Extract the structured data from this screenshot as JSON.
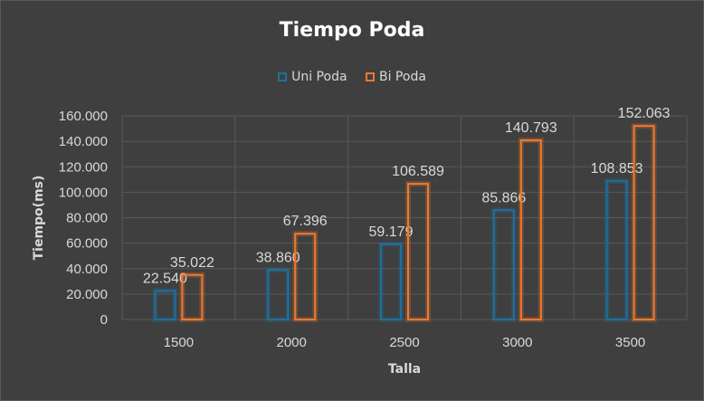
{
  "chart_data": {
    "type": "bar",
    "title": "Tiempo Poda",
    "xlabel": "Talla",
    "ylabel": "Tiempo(ms)",
    "categories": [
      "1500",
      "2000",
      "2500",
      "3000",
      "3500"
    ],
    "series": [
      {
        "name": "Uni Poda",
        "values": [
          22540,
          38860,
          59179,
          85866,
          108853
        ],
        "labels": [
          "22.540",
          "38.860",
          "59.179",
          "85.866",
          "108.853"
        ],
        "color": "#1f6f9e"
      },
      {
        "name": "Bi Poda",
        "values": [
          35022,
          67396,
          106589,
          140793,
          152063
        ],
        "labels": [
          "35.022",
          "67.396",
          "106.589",
          "140.793",
          "152.063"
        ],
        "color": "#f0782d"
      }
    ],
    "ylim": [
      0,
      160000
    ],
    "yticks": [
      0,
      20000,
      40000,
      60000,
      80000,
      100000,
      120000,
      140000,
      160000
    ],
    "ytick_labels": [
      "0",
      "20.000",
      "40.000",
      "60.000",
      "80.000",
      "100.000",
      "120.000",
      "140.000",
      "160.000"
    ],
    "grid": true,
    "legend_position": "top"
  },
  "colors": {
    "background": "#3f3f3f",
    "grid": "#595959",
    "text": "#d9d9d9"
  }
}
